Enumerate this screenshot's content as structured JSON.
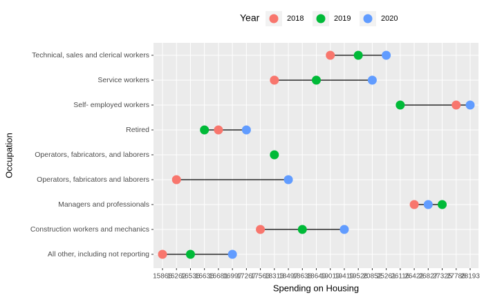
{
  "chart_data": {
    "type": "dumbbell",
    "legend_title": "Year",
    "x_label": "Spending on Housing",
    "y_label": "Occupation",
    "categories": [
      "Technical, sales and clerical workers",
      "Service workers",
      "Self- employed workers",
      "Retired",
      "Operators, fabricators, and laborers",
      "Operators, fabricators and laborers",
      "Managers and professionals",
      "Construction workers and mechanics",
      "All other, including not reporting"
    ],
    "xticks": [
      15866,
      16262,
      16536,
      16636,
      16681,
      16997,
      17267,
      17563,
      18313,
      18497,
      18638,
      18649,
      19019,
      19419,
      19526,
      20852,
      25261,
      26116,
      26422,
      26827,
      27325,
      27788,
      28193
    ],
    "x_scale": "discrete",
    "grid": true,
    "legend_position": "top",
    "series": [
      {
        "name": "2018",
        "color": "#F8766D",
        "values": [
          19019,
          18313,
          27788,
          16681,
          null,
          16262,
          26422,
          17563,
          15866
        ]
      },
      {
        "name": "2019",
        "color": "#00BA38",
        "values": [
          19526,
          18649,
          26116,
          16636,
          18313,
          null,
          27325,
          18638,
          16536
        ]
      },
      {
        "name": "2020",
        "color": "#619CFF",
        "values": [
          25261,
          20852,
          28193,
          17267,
          null,
          18497,
          26827,
          19419,
          16997
        ]
      }
    ]
  }
}
